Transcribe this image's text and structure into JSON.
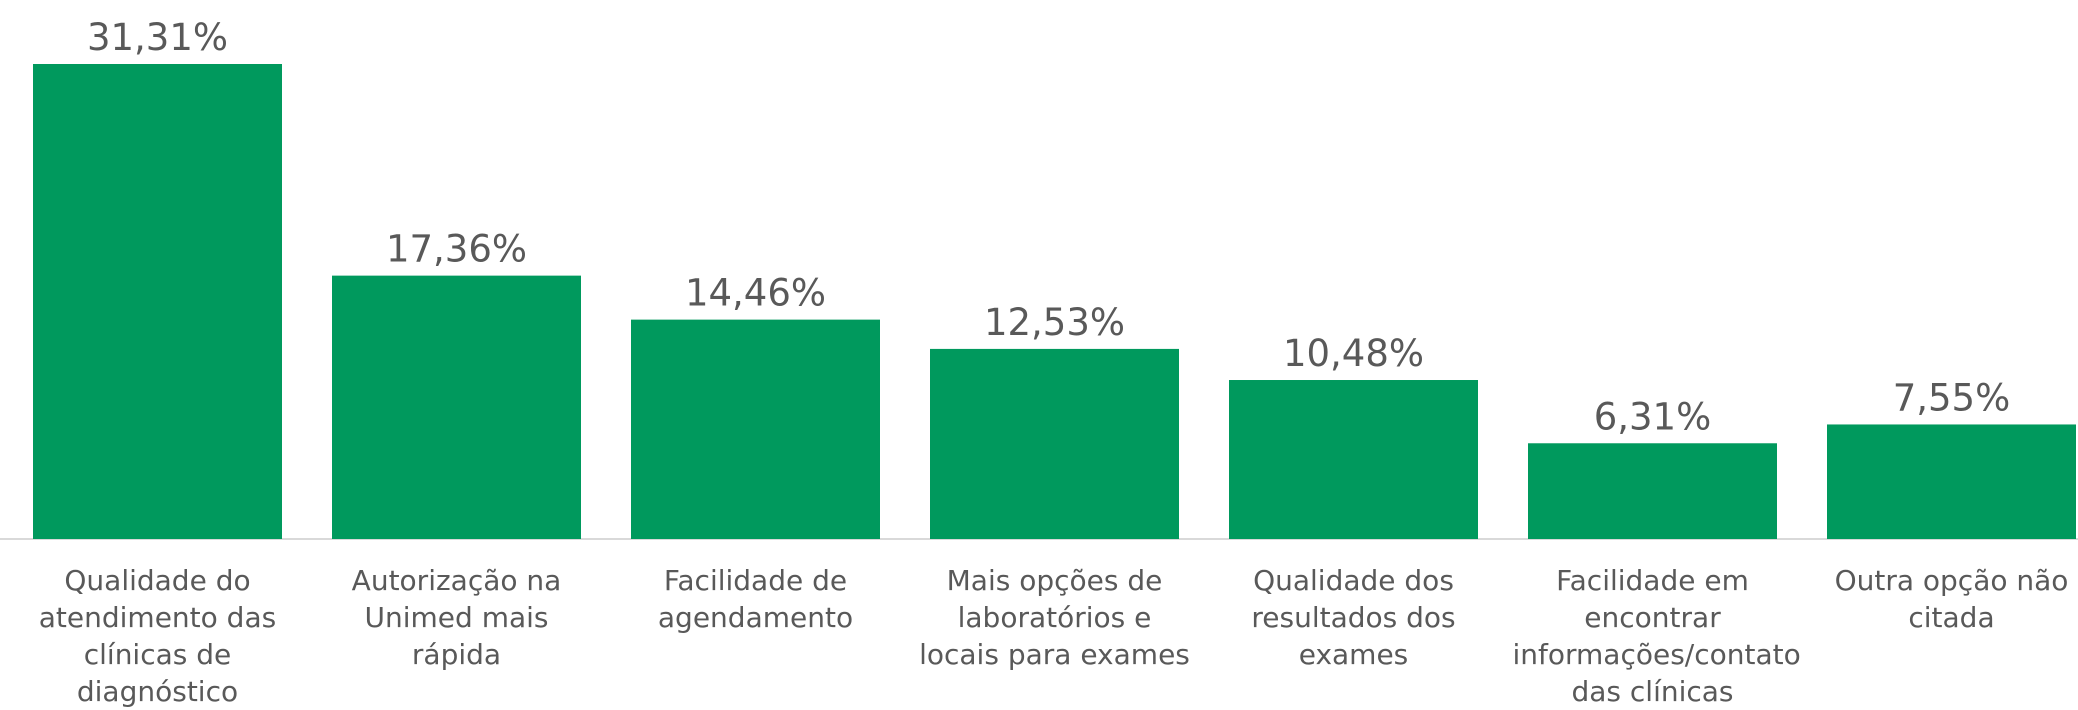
{
  "chart_data": {
    "type": "bar",
    "categories": [
      "Qualidade do atendimento das clínicas de diagnóstico",
      "Autorização na Unimed mais rápida",
      "Facilidade de agendamento",
      "Mais opções de laboratórios e locais para exames",
      "Qualidade dos resultados dos exames",
      "Facilidade em encontrar informações/contato das clínicas",
      "Outra opção não citada"
    ],
    "values": [
      31.31,
      17.36,
      14.46,
      12.53,
      10.48,
      6.31,
      7.55
    ],
    "value_labels": [
      "31,31%",
      "17,36%",
      "14,46%",
      "12,53%",
      "10,48%",
      "6,31%",
      "7,55%"
    ],
    "color": "#00995d"
  }
}
